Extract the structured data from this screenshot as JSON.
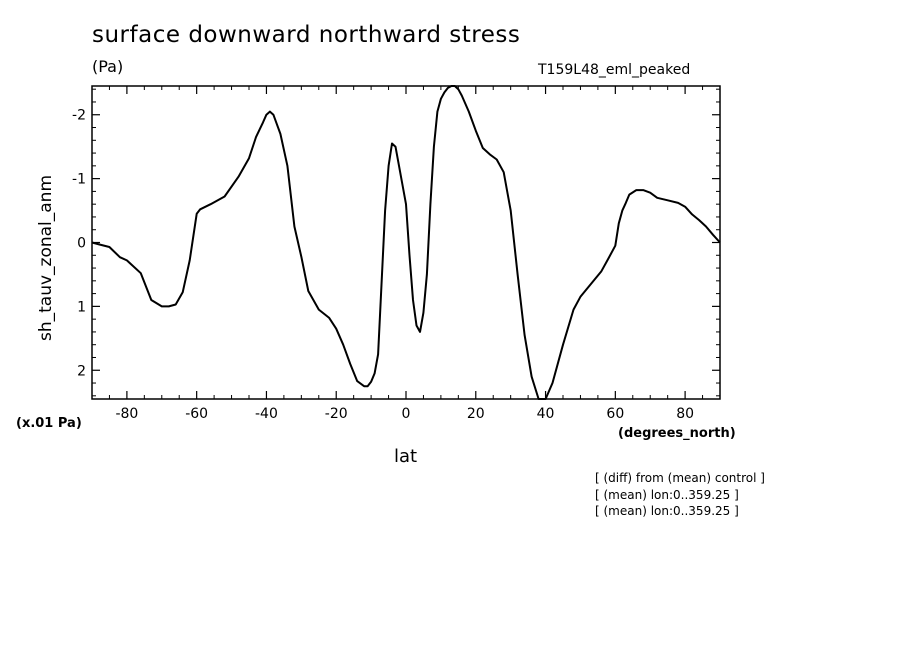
{
  "header": {
    "title": "surface downward northward stress",
    "units": "(Pa)",
    "run_name": "T159L48_eml_peaked"
  },
  "axes": {
    "ylabel": "sh_tauv_zonal_anm",
    "xlabel": "lat",
    "xunits": "(degrees_north)",
    "yscale": "(x.01 Pa)"
  },
  "notes": [
    "[ (diff) from (mean) control ]",
    "[ (mean) lon:0..359.25 ]",
    "[ (mean) lon:0..359.25 ]"
  ],
  "chart_data": {
    "type": "line",
    "title": "surface downward northward stress",
    "xlabel": "lat",
    "ylabel": "sh_tauv_zonal_anm",
    "xlim": [
      -90,
      90
    ],
    "ylim": [
      2.45,
      -2.45
    ],
    "y_inverted": true,
    "xticks": [
      -80,
      -60,
      -40,
      -20,
      0,
      20,
      40,
      60,
      80
    ],
    "xtick_labels": [
      "-80",
      "-60",
      "-40",
      "-20",
      "0",
      "20",
      "40",
      "60",
      "80"
    ],
    "yticks": [
      -2,
      -1,
      0,
      1,
      2
    ],
    "ytick_labels": [
      "-2",
      "-1",
      "0",
      "1",
      "2"
    ],
    "grid": false,
    "series": [
      {
        "x": [
          -90,
          -88,
          -85,
          -82,
          -80,
          -76,
          -73,
          -70,
          -68,
          -66,
          -64,
          -62,
          -60,
          -59,
          -56,
          -52,
          -48,
          -45,
          -43,
          -41,
          -40,
          -39,
          -38,
          -36,
          -34,
          -32,
          -30,
          -28,
          -25,
          -22,
          -20,
          -18,
          -16,
          -14,
          -12,
          -11,
          -10,
          -9,
          -8,
          -6,
          -5,
          -4,
          -3,
          -2,
          -1,
          0,
          1,
          2,
          3,
          4,
          5,
          6,
          7,
          8,
          9,
          10,
          11,
          12,
          13,
          14,
          15,
          16,
          18,
          20,
          22,
          24,
          26,
          28,
          30,
          32,
          34,
          36,
          38,
          39,
          40,
          42,
          45,
          48,
          50,
          53,
          56,
          58,
          60,
          61,
          62,
          63,
          64,
          66,
          68,
          70,
          72,
          75,
          78,
          80,
          82,
          84,
          86,
          88,
          90
        ],
        "y": [
          0.0,
          0.03,
          0.07,
          0.23,
          0.28,
          0.48,
          0.9,
          1.0,
          1.0,
          0.97,
          0.78,
          0.28,
          -0.45,
          -0.52,
          -0.6,
          -0.72,
          -1.03,
          -1.32,
          -1.65,
          -1.88,
          -2.0,
          -2.05,
          -2.0,
          -1.7,
          -1.2,
          -0.25,
          0.22,
          0.76,
          1.05,
          1.18,
          1.35,
          1.6,
          1.9,
          2.17,
          2.25,
          2.25,
          2.18,
          2.05,
          1.75,
          -0.5,
          -1.2,
          -1.55,
          -1.5,
          -1.2,
          -0.9,
          -0.6,
          0.2,
          0.9,
          1.3,
          1.4,
          1.1,
          0.5,
          -0.6,
          -1.5,
          -2.05,
          -2.25,
          -2.35,
          -2.42,
          -2.45,
          -2.45,
          -2.4,
          -2.3,
          -2.05,
          -1.75,
          -1.48,
          -1.38,
          -1.3,
          -1.1,
          -0.5,
          0.5,
          1.45,
          2.1,
          2.45,
          2.5,
          2.48,
          2.2,
          1.6,
          1.05,
          0.85,
          0.65,
          0.45,
          0.25,
          0.05,
          -0.3,
          -0.5,
          -0.62,
          -0.75,
          -0.82,
          -0.82,
          -0.78,
          -0.7,
          -0.66,
          -0.62,
          -0.56,
          -0.44,
          -0.35,
          -0.25,
          -0.12,
          0.0
        ]
      }
    ]
  }
}
